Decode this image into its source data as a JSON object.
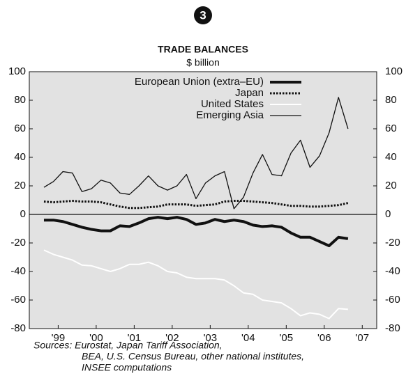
{
  "badge": "3",
  "chart_data": {
    "type": "line",
    "title": "TRADE BALANCES",
    "subtitle": "$ billion",
    "x": [
      1999.125,
      1999.375,
      1999.625,
      1999.875,
      2000.125,
      2000.375,
      2000.625,
      2000.875,
      2001.125,
      2001.375,
      2001.625,
      2001.875,
      2002.125,
      2002.375,
      2002.625,
      2002.875,
      2003.125,
      2003.375,
      2003.625,
      2003.875,
      2004.125,
      2004.375,
      2004.625,
      2004.875,
      2005.125,
      2005.375,
      2005.625,
      2005.875,
      2006.125,
      2006.375,
      2006.625,
      2006.875,
      2007.125
    ],
    "series": [
      {
        "name": "European Union (extra–EU)",
        "color": "#111111",
        "width": 4,
        "style": "solid",
        "values": [
          -4,
          -4,
          -5,
          -7,
          -9,
          -10.5,
          -11.5,
          -11.5,
          -8,
          -8.5,
          -6,
          -3,
          -2,
          -3,
          -2,
          -3.5,
          -7,
          -6,
          -3.5,
          -5,
          -4,
          -5,
          -7.5,
          -8.5,
          -8,
          -9,
          -13,
          -16,
          -16,
          -19,
          -22,
          -16,
          -17
        ]
      },
      {
        "name": "Japan",
        "color": "#111111",
        "width": 3,
        "style": "dotted",
        "values": [
          9,
          8.5,
          9,
          9.5,
          9,
          9,
          8.5,
          7,
          5.5,
          4.5,
          4.5,
          5,
          5.5,
          7,
          7,
          7,
          6,
          6.5,
          7,
          9,
          9.5,
          9.5,
          9,
          8.5,
          8,
          7,
          6,
          6,
          5.5,
          5.5,
          6,
          6.5,
          8
        ]
      },
      {
        "name": "United States",
        "color": "#ffffff",
        "width": 2,
        "style": "solid",
        "values": [
          -25,
          -28,
          -30,
          -32,
          -35.5,
          -36,
          -38,
          -40,
          -38,
          -35,
          -35,
          -33.5,
          -36,
          -40,
          -41,
          -44,
          -45,
          -45,
          -45,
          -46,
          -50,
          -55,
          -56,
          -60,
          -61,
          -62,
          -66,
          -71,
          -69,
          -70,
          -73,
          -66,
          -66.5
        ]
      },
      {
        "name": "Emerging Asia",
        "color": "#111111",
        "width": 1.3,
        "style": "solid",
        "values": [
          19,
          23,
          30,
          29,
          16,
          18,
          24,
          22,
          15,
          14,
          20,
          27,
          20,
          17,
          20,
          28,
          11,
          22,
          27,
          30,
          4,
          12,
          29,
          42,
          28,
          27,
          43,
          52,
          33,
          41,
          57,
          82,
          60
        ]
      }
    ],
    "xlim": [
      1998.74,
      2007.88
    ],
    "xticks": [
      {
        "value": 1999.5,
        "label": "'99"
      },
      {
        "value": 2000.5,
        "label": "'00"
      },
      {
        "value": 2001.5,
        "label": "'01"
      },
      {
        "value": 2002.5,
        "label": "'02"
      },
      {
        "value": 2003.5,
        "label": "'03"
      },
      {
        "value": 2004.5,
        "label": "'04"
      },
      {
        "value": 2005.5,
        "label": "'05"
      },
      {
        "value": 2006.5,
        "label": "'06"
      },
      {
        "value": 2007.5,
        "label": "'07"
      }
    ],
    "ylim": [
      -80,
      100
    ],
    "yticks": [
      -80,
      -60,
      -40,
      -20,
      0,
      20,
      40,
      60,
      80,
      100
    ],
    "background": "#e2e2e2",
    "legend": "top",
    "sources": [
      "Sources: Eurostat, Japan Tariff Association,",
      "BEA, U.S. Census Bureau, other national institutes,",
      "INSEE computations"
    ]
  }
}
